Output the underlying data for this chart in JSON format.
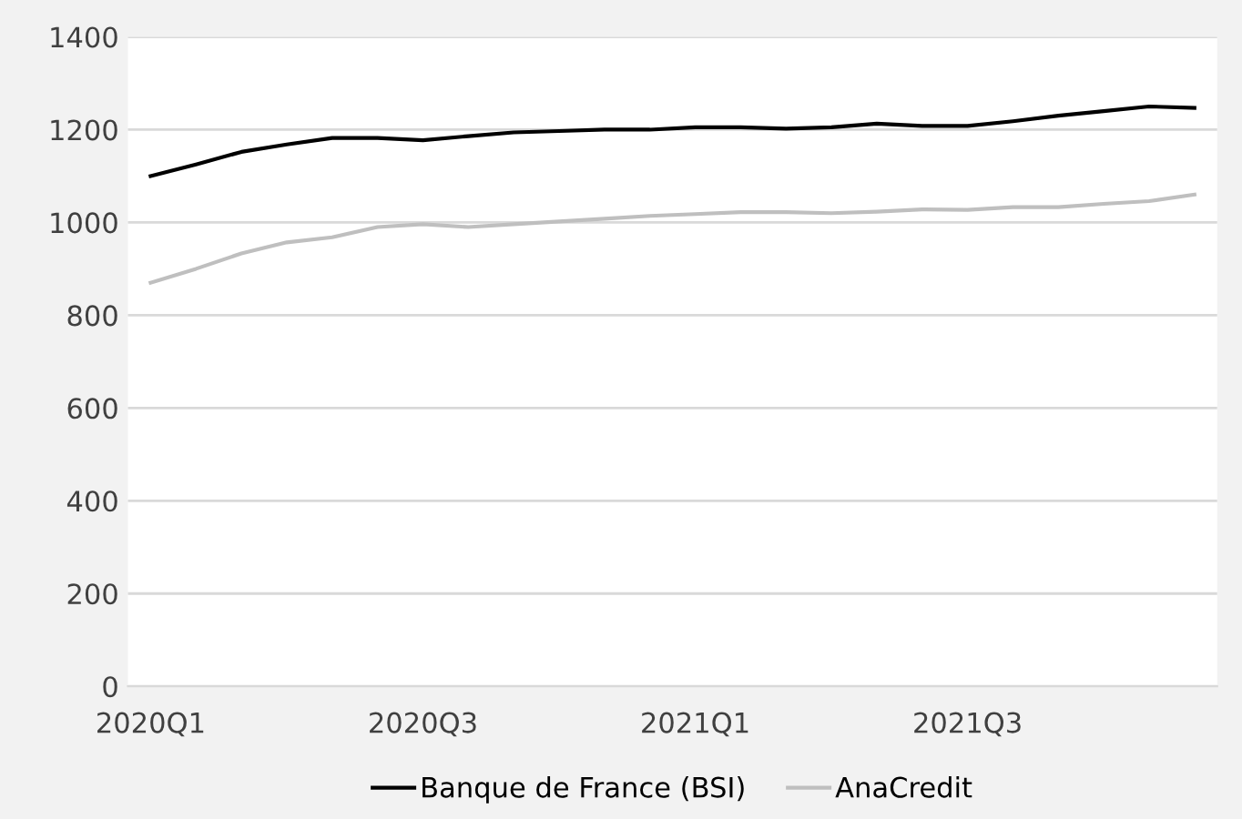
{
  "chart_data": {
    "type": "line",
    "categories": [
      "2020Q1",
      null,
      null,
      null,
      null,
      null,
      "2020Q3",
      null,
      null,
      null,
      null,
      null,
      "2021Q1",
      null,
      null,
      null,
      null,
      null,
      "2021Q3",
      null,
      null,
      null,
      null,
      null
    ],
    "series": [
      {
        "name": "Banque de France (BSI)",
        "color": "#000000",
        "values": [
          1100,
          1125,
          1152,
          1168,
          1182,
          1182,
          1177,
          1186,
          1194,
          1197,
          1200,
          1200,
          1205,
          1205,
          1202,
          1205,
          1213,
          1208,
          1208,
          1218,
          1230,
          1240,
          1250,
          1247
        ]
      },
      {
        "name": "AnaCredit",
        "color": "#bfbfbf",
        "values": [
          870,
          900,
          933,
          957,
          968,
          990,
          996,
          990,
          996,
          1002,
          1008,
          1014,
          1018,
          1022,
          1022,
          1020,
          1023,
          1028,
          1027,
          1033,
          1033,
          1040,
          1046,
          1060
        ]
      }
    ],
    "ylim": [
      0,
      1400
    ],
    "yticks": [
      0,
      200,
      400,
      600,
      800,
      1000,
      1200,
      1400
    ],
    "grid": "y",
    "legend": "bottom",
    "marker": "none",
    "line_style": "solid"
  }
}
